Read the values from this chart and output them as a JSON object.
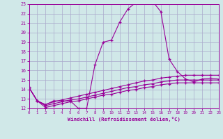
{
  "xlabel": "Windchill (Refroidissement éolien,°C)",
  "xlim": [
    0,
    23
  ],
  "ylim": [
    12,
    23
  ],
  "yticks": [
    12,
    13,
    14,
    15,
    16,
    17,
    18,
    19,
    20,
    21,
    22,
    23
  ],
  "xticks": [
    0,
    1,
    2,
    3,
    4,
    5,
    6,
    7,
    8,
    9,
    10,
    11,
    12,
    13,
    14,
    15,
    16,
    17,
    18,
    19,
    20,
    21,
    22,
    23
  ],
  "bg_color": "#d0e8e8",
  "line_color": "#990099",
  "grid_color": "#aaaacc",
  "lines": [
    {
      "x": [
        0,
        1,
        2,
        3,
        4,
        5,
        6,
        7,
        8,
        9,
        10,
        11,
        12,
        13,
        14,
        15,
        16,
        17,
        18,
        19,
        20,
        21,
        22,
        23
      ],
      "y": [
        14.2,
        12.8,
        12.4,
        12.8,
        12.8,
        12.8,
        12.0,
        12.0,
        16.6,
        19.0,
        19.2,
        21.1,
        22.5,
        23.2,
        23.5,
        23.3,
        22.2,
        17.2,
        15.9,
        15.1,
        14.8,
        15.1,
        15.2,
        15.1
      ]
    },
    {
      "x": [
        0,
        1,
        2,
        3,
        4,
        5,
        6,
        7,
        8,
        9,
        10,
        11,
        12,
        13,
        14,
        15,
        16,
        17,
        18,
        19,
        20,
        21,
        22,
        23
      ],
      "y": [
        14.2,
        12.8,
        12.4,
        12.7,
        12.9,
        13.1,
        13.3,
        13.5,
        13.7,
        13.9,
        14.1,
        14.3,
        14.5,
        14.7,
        14.9,
        15.0,
        15.2,
        15.3,
        15.4,
        15.5,
        15.5,
        15.5,
        15.5,
        15.5
      ]
    },
    {
      "x": [
        0,
        1,
        2,
        3,
        4,
        5,
        6,
        7,
        8,
        9,
        10,
        11,
        12,
        13,
        14,
        15,
        16,
        17,
        18,
        19,
        20,
        21,
        22,
        23
      ],
      "y": [
        14.2,
        12.8,
        12.3,
        12.5,
        12.7,
        12.9,
        13.0,
        13.2,
        13.4,
        13.6,
        13.8,
        14.0,
        14.2,
        14.3,
        14.5,
        14.6,
        14.8,
        14.9,
        15.0,
        15.0,
        15.0,
        15.0,
        15.0,
        15.0
      ]
    },
    {
      "x": [
        0,
        1,
        2,
        3,
        4,
        5,
        6,
        7,
        8,
        9,
        10,
        11,
        12,
        13,
        14,
        15,
        16,
        17,
        18,
        19,
        20,
        21,
        22,
        23
      ],
      "y": [
        14.2,
        12.8,
        12.1,
        12.3,
        12.5,
        12.7,
        12.8,
        13.0,
        13.2,
        13.4,
        13.5,
        13.7,
        13.9,
        14.0,
        14.2,
        14.3,
        14.5,
        14.6,
        14.7,
        14.7,
        14.7,
        14.7,
        14.7,
        14.7
      ]
    }
  ]
}
